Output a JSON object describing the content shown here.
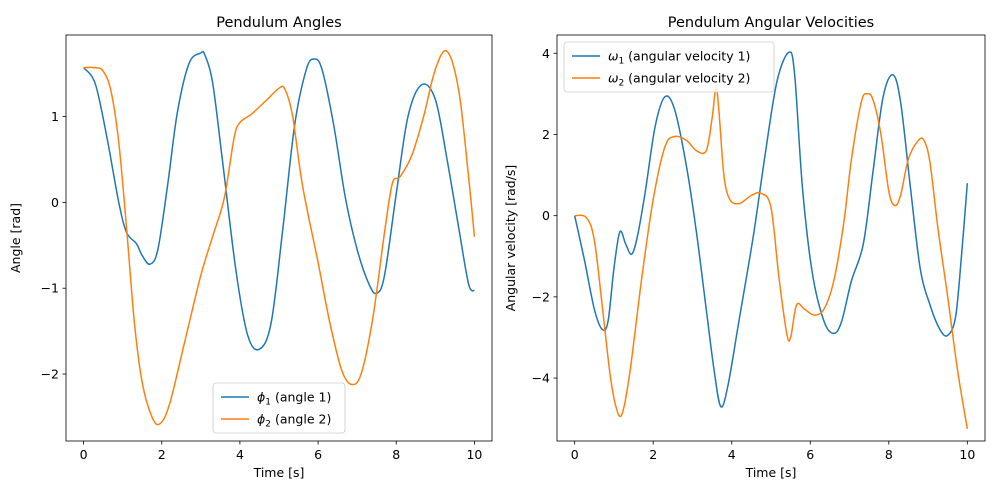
{
  "chart_data": [
    {
      "type": "line",
      "title": "Pendulum Angles",
      "xlabel": "Time [s]",
      "ylabel": "Angle [rad]",
      "xlim": [
        -0.45,
        10.45
      ],
      "ylim": [
        -2.78,
        1.95
      ],
      "xticks": [
        0,
        2,
        4,
        6,
        8,
        10
      ],
      "yticks": [
        -2,
        -1,
        0,
        1
      ],
      "grid": false,
      "legend_position": "lower-center",
      "series": [
        {
          "name": "ϕ1 (angle 1)",
          "legend": {
            "sym": "ϕ",
            "sub": "1",
            "rest": " (angle 1)"
          },
          "color": "#1f77b4",
          "x": [
            0,
            0.3,
            0.6,
            0.9,
            1.1,
            1.35,
            1.5,
            1.7,
            1.9,
            2.15,
            2.4,
            2.7,
            3.0,
            3.1,
            3.3,
            3.55,
            3.9,
            4.2,
            4.5,
            4.8,
            5.1,
            5.4,
            5.7,
            5.9,
            6.1,
            6.4,
            6.7,
            7.0,
            7.3,
            7.5,
            7.7,
            8.0,
            8.3,
            8.65,
            9.0,
            9.3,
            9.6,
            9.85,
            10.0
          ],
          "y": [
            1.57,
            1.38,
            0.75,
            0.0,
            -0.35,
            -0.48,
            -0.62,
            -0.72,
            -0.55,
            0.2,
            1.05,
            1.62,
            1.74,
            1.72,
            1.4,
            0.5,
            -0.8,
            -1.55,
            -1.71,
            -1.4,
            -0.3,
            0.9,
            1.55,
            1.67,
            1.55,
            0.9,
            0.05,
            -0.55,
            -0.95,
            -1.06,
            -0.85,
            0.1,
            1.0,
            1.37,
            1.2,
            0.5,
            -0.3,
            -0.95,
            -1.03
          ]
        },
        {
          "name": "ϕ2 (angle 2)",
          "legend": {
            "sym": "ϕ",
            "sub": "2",
            "rest": " (angle 2)"
          },
          "color": "#ff7f0e",
          "x": [
            0,
            0.3,
            0.5,
            0.7,
            0.9,
            1.1,
            1.3,
            1.5,
            1.75,
            1.95,
            2.2,
            2.6,
            3.0,
            3.3,
            3.6,
            3.85,
            4.0,
            4.3,
            4.7,
            5.0,
            5.15,
            5.35,
            5.6,
            6.0,
            6.3,
            6.6,
            6.85,
            7.1,
            7.4,
            7.7,
            7.9,
            8.1,
            8.4,
            8.7,
            9.0,
            9.3,
            9.6,
            9.85,
            10.0
          ],
          "y": [
            1.57,
            1.57,
            1.53,
            1.3,
            0.7,
            -0.3,
            -1.4,
            -2.1,
            -2.5,
            -2.58,
            -2.35,
            -1.6,
            -0.85,
            -0.4,
            0.05,
            0.75,
            0.93,
            1.03,
            1.2,
            1.33,
            1.32,
            1.0,
            0.2,
            -0.7,
            -1.4,
            -1.95,
            -2.12,
            -2.0,
            -1.35,
            -0.35,
            0.22,
            0.3,
            0.55,
            1.0,
            1.55,
            1.76,
            1.3,
            0.3,
            -0.4
          ]
        }
      ]
    },
    {
      "type": "line",
      "title": "Pendulum Angular Velocities",
      "xlabel": "Time [s]",
      "ylabel": "Angular velocity [rad/s]",
      "xlim": [
        -0.45,
        10.45
      ],
      "ylim": [
        -5.55,
        4.45
      ],
      "xticks": [
        0,
        2,
        4,
        6,
        8,
        10
      ],
      "yticks": [
        -4,
        -2,
        0,
        2,
        4
      ],
      "grid": false,
      "legend_position": "upper-left",
      "series": [
        {
          "name": "ω1 (angular velocity 1)",
          "legend": {
            "sym": "ω",
            "sub": "1",
            "rest": " (angular velocity 1)"
          },
          "color": "#1f77b4",
          "x": [
            0,
            0.25,
            0.5,
            0.7,
            0.85,
            1.0,
            1.15,
            1.3,
            1.45,
            1.6,
            1.8,
            2.05,
            2.3,
            2.55,
            2.85,
            3.1,
            3.35,
            3.55,
            3.72,
            3.9,
            4.2,
            4.55,
            4.85,
            5.15,
            5.45,
            5.6,
            5.8,
            6.05,
            6.35,
            6.6,
            6.8,
            7.05,
            7.35,
            7.6,
            7.85,
            8.1,
            8.3,
            8.55,
            8.8,
            9.05,
            9.3,
            9.5,
            9.7,
            9.85,
            10.0
          ],
          "y": [
            0.0,
            -1.1,
            -2.3,
            -2.8,
            -2.6,
            -1.3,
            -0.4,
            -0.7,
            -0.95,
            -0.5,
            0.6,
            2.2,
            2.93,
            2.6,
            1.2,
            -0.4,
            -2.3,
            -3.8,
            -4.7,
            -4.2,
            -2.5,
            -0.5,
            1.5,
            3.3,
            4.02,
            3.5,
            0.7,
            -1.4,
            -2.6,
            -2.9,
            -2.6,
            -1.6,
            -0.7,
            1.1,
            2.9,
            3.47,
            2.8,
            0.7,
            -1.3,
            -2.2,
            -2.8,
            -2.95,
            -2.5,
            -1.0,
            0.8
          ]
        },
        {
          "name": "ω2 (angular velocity 2)",
          "legend": {
            "sym": "ω",
            "sub": "2",
            "rest": " (angular velocity 2)"
          },
          "color": "#ff7f0e",
          "x": [
            0,
            0.3,
            0.5,
            0.7,
            0.9,
            1.05,
            1.2,
            1.4,
            1.7,
            2.0,
            2.3,
            2.55,
            2.85,
            3.1,
            3.35,
            3.5,
            3.6,
            3.68,
            3.8,
            3.95,
            4.2,
            4.5,
            4.75,
            5.0,
            5.2,
            5.4,
            5.5,
            5.65,
            5.85,
            6.1,
            6.35,
            6.6,
            6.85,
            7.05,
            7.3,
            7.45,
            7.6,
            7.8,
            8.0,
            8.15,
            8.3,
            8.5,
            8.75,
            8.9,
            9.05,
            9.25,
            9.5,
            9.75,
            10.0
          ],
          "y": [
            0.0,
            -0.05,
            -0.6,
            -2.2,
            -3.9,
            -4.7,
            -4.9,
            -3.9,
            -1.6,
            0.4,
            1.7,
            1.95,
            1.85,
            1.6,
            1.6,
            2.4,
            3.15,
            2.5,
            1.0,
            0.4,
            0.3,
            0.5,
            0.55,
            0.2,
            -1.5,
            -2.9,
            -3.0,
            -2.2,
            -2.3,
            -2.45,
            -2.3,
            -1.6,
            -0.2,
            1.4,
            2.8,
            3.0,
            2.85,
            2.0,
            0.6,
            0.25,
            0.5,
            1.4,
            1.85,
            1.85,
            1.3,
            -0.3,
            -2.0,
            -3.8,
            -5.25
          ]
        }
      ]
    }
  ]
}
